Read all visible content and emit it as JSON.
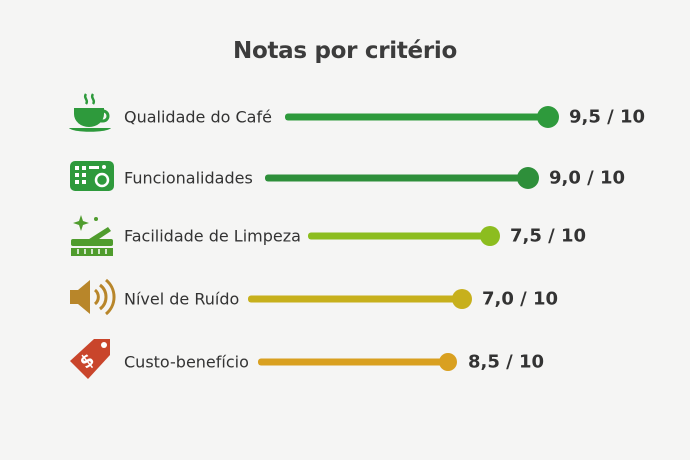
{
  "chart_data": {
    "type": "bar",
    "orientation": "horizontal",
    "title": "Notas por critério",
    "categories": [
      "Qualidade do Café",
      "Funcionalidades",
      "Facilidade de Limpeza",
      "Nível de Ruído",
      "Custo-benefício"
    ],
    "values": [
      9.5,
      9.0,
      7.5,
      7.0,
      8.5
    ],
    "value_labels": [
      "9,5 / 10",
      "9,0 / 10",
      "7,5 / 10",
      "7,0 / 10",
      "8,5 / 10"
    ],
    "max": 10,
    "colors": [
      "#2e9a3c",
      "#2e8f3a",
      "#8cbd1f",
      "#c7b01c",
      "#d9a020"
    ],
    "icons": [
      "coffee-cup-icon",
      "control-panel-icon",
      "cleaning-brush-icon",
      "speaker-icon",
      "price-tag-icon"
    ],
    "icon_colors": [
      "#2e9a3c",
      "#2e9a3c",
      "#4f9c2d",
      "#b8862a",
      "#c9452b"
    ]
  }
}
